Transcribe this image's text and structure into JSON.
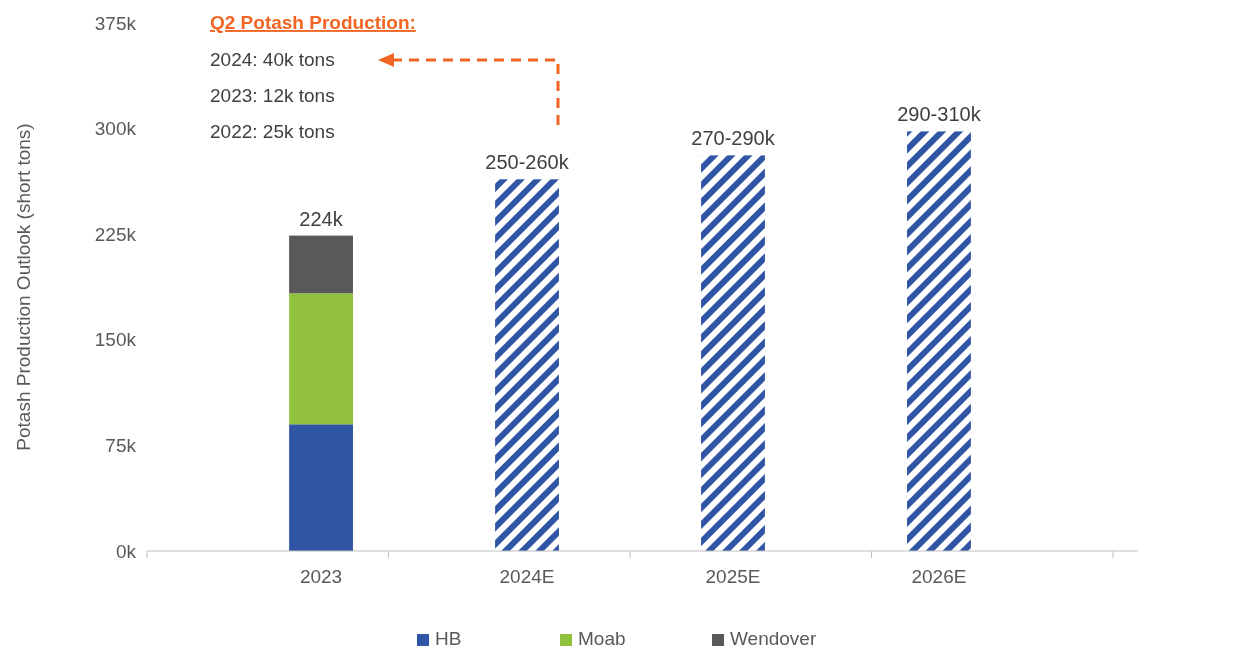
{
  "chart_data": {
    "type": "bar",
    "stacked": true,
    "categories": [
      "2023",
      "2024E",
      "2025E",
      "2026E"
    ],
    "ylabel": "Potash Production Outlook (short tons)",
    "ylim": [
      0,
      375
    ],
    "yticks": [
      {
        "value": 0,
        "label": "0k"
      },
      {
        "value": 75,
        "label": "75k"
      },
      {
        "value": 150,
        "label": "150k"
      },
      {
        "value": 225,
        "label": "225k"
      },
      {
        "value": 300,
        "label": "300k"
      },
      {
        "value": 375,
        "label": "375k"
      }
    ],
    "series": [
      {
        "name": "HB",
        "color": "#2f55a4",
        "values": [
          90,
          null,
          null,
          null
        ]
      },
      {
        "name": "Moab",
        "color": "#92c13e",
        "values": [
          93,
          null,
          null,
          null
        ]
      },
      {
        "name": "Wendover",
        "color": "#595959",
        "values": [
          41,
          null,
          null,
          null
        ]
      },
      {
        "color": "#2f55a4",
        "values": [
          null,
          264,
          281,
          298
        ]
      }
    ],
    "totals": [
      "224k",
      "250-260k",
      "270-290k",
      "290-310k"
    ],
    "annotations": [
      "Q2 Potash Production:",
      "2024: 40k tons",
      "2023: 12k tons",
      "2022: 25k tons"
    ],
    "grid": false,
    "legend": "bottom"
  }
}
